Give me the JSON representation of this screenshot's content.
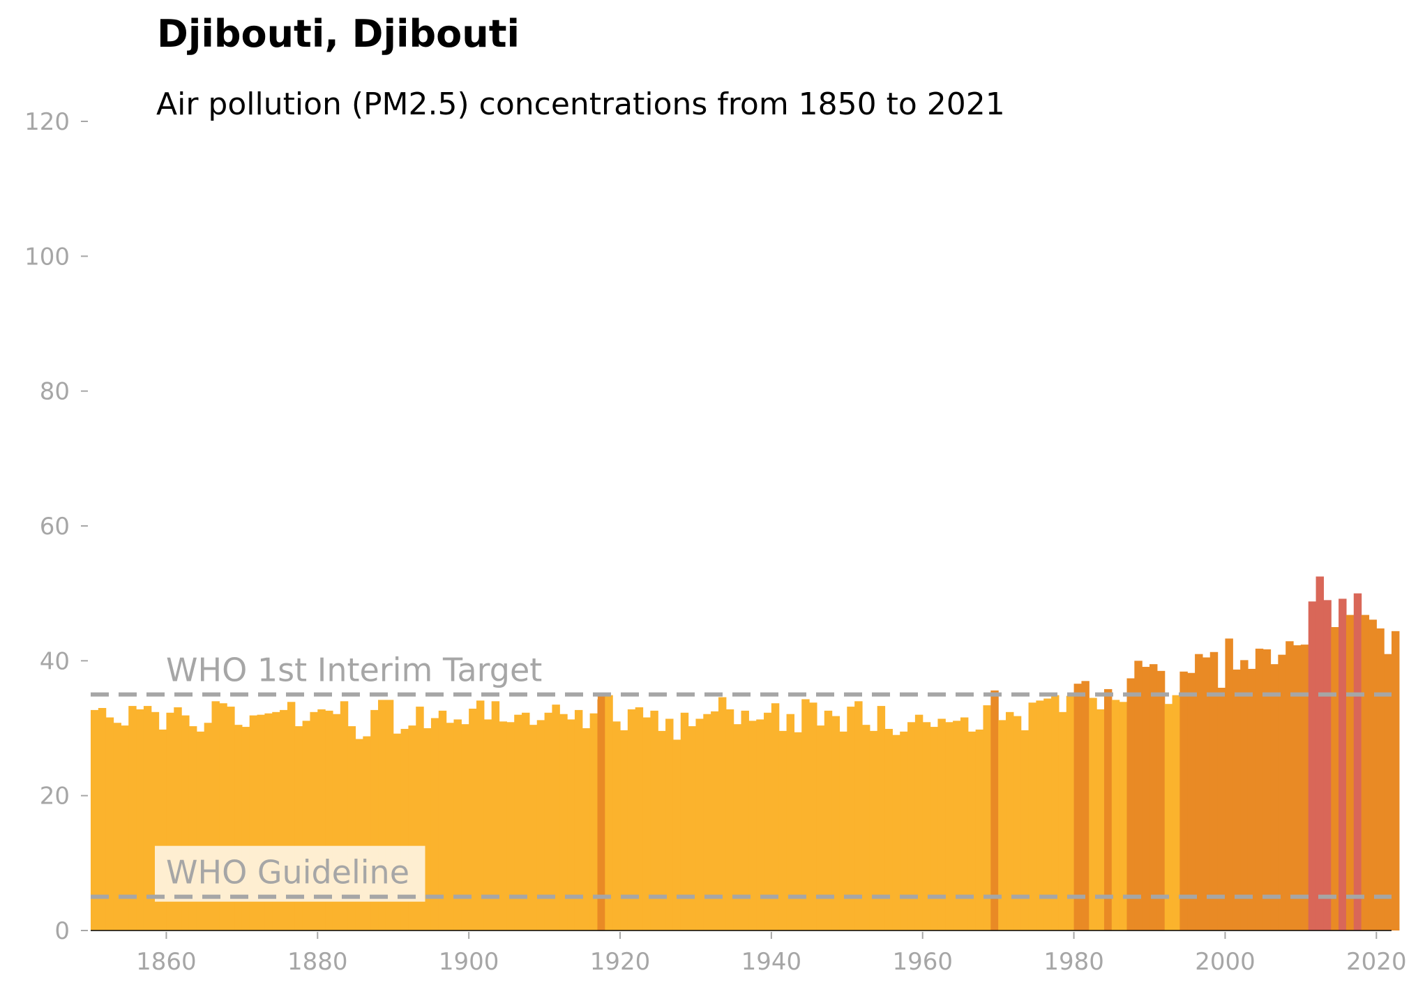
{
  "chart_data": {
    "type": "bar",
    "title": "Djibouti, Djibouti",
    "subtitle": "Air pollution (PM2.5) concentrations from 1850 to 2021",
    "xlabel": "",
    "ylabel": "",
    "x_start": 1850,
    "x_end": 2021,
    "xlim": [
      1850,
      2022
    ],
    "ylim": [
      0,
      120
    ],
    "x_ticks": [
      1860,
      1880,
      1900,
      1920,
      1940,
      1960,
      1980,
      2000,
      2020
    ],
    "y_ticks": [
      0,
      20,
      40,
      60,
      80,
      100,
      120
    ],
    "grid": false,
    "values": [
      32.7,
      33.0,
      31.6,
      30.8,
      30.4,
      33.3,
      32.8,
      33.3,
      32.4,
      29.8,
      32.3,
      33.1,
      31.9,
      30.3,
      29.5,
      30.8,
      34.0,
      33.7,
      33.2,
      30.5,
      30.2,
      31.9,
      32.0,
      32.2,
      32.4,
      32.7,
      33.9,
      30.3,
      31.1,
      32.4,
      32.8,
      32.6,
      32.1,
      34.0,
      30.3,
      28.4,
      28.8,
      32.7,
      34.2,
      34.2,
      29.2,
      29.9,
      30.4,
      33.2,
      30.0,
      31.5,
      32.6,
      30.8,
      31.3,
      30.6,
      32.9,
      34.1,
      31.3,
      34.0,
      31.0,
      30.9,
      32.0,
      32.3,
      30.5,
      31.2,
      32.3,
      33.5,
      32.1,
      31.3,
      32.7,
      30.0,
      32.2,
      35.1,
      34.9,
      31.0,
      29.7,
      32.8,
      33.1,
      31.6,
      32.6,
      29.6,
      31.4,
      28.3,
      32.3,
      30.3,
      31.4,
      32.1,
      32.5,
      34.6,
      32.8,
      30.6,
      32.6,
      31.1,
      31.3,
      32.3,
      33.7,
      29.6,
      32.1,
      29.4,
      34.3,
      33.8,
      30.4,
      32.6,
      31.8,
      29.5,
      33.2,
      34.0,
      30.5,
      29.6,
      33.3,
      29.9,
      29.0,
      29.5,
      30.9,
      32.0,
      30.9,
      30.2,
      31.4,
      30.9,
      31.1,
      31.6,
      29.5,
      29.8,
      33.4,
      35.6,
      31.2,
      32.4,
      31.8,
      29.7,
      33.8,
      34.1,
      34.4,
      34.9,
      32.4,
      34.8,
      36.6,
      37.0,
      34.5,
      32.8,
      35.8,
      34.2,
      33.9,
      37.4,
      40.0,
      39.1,
      39.5,
      38.5,
      33.6,
      34.9,
      38.4,
      38.2,
      41.0,
      40.5,
      41.3,
      36.0,
      43.3,
      38.7,
      40.1,
      38.8,
      41.8,
      41.7,
      39.5,
      40.9,
      42.9,
      42.3,
      42.4,
      48.8,
      52.5,
      49.0,
      45.0,
      49.2,
      46.8,
      50.0,
      46.8,
      46.1,
      44.8,
      41.0,
      44.4
    ],
    "category_thresholds": [
      35,
      48
    ],
    "colors": {
      "low": "#fbb32d",
      "moderate": "#e98a25",
      "high": "#d96758",
      "reference_line": "#a6a6a6",
      "axis_text": "#a6a6a6",
      "title": "#000000"
    },
    "reference_lines": [
      {
        "label": "WHO 1st Interim Target",
        "value": 35
      },
      {
        "label": "WHO Guideline",
        "value": 5
      }
    ]
  }
}
